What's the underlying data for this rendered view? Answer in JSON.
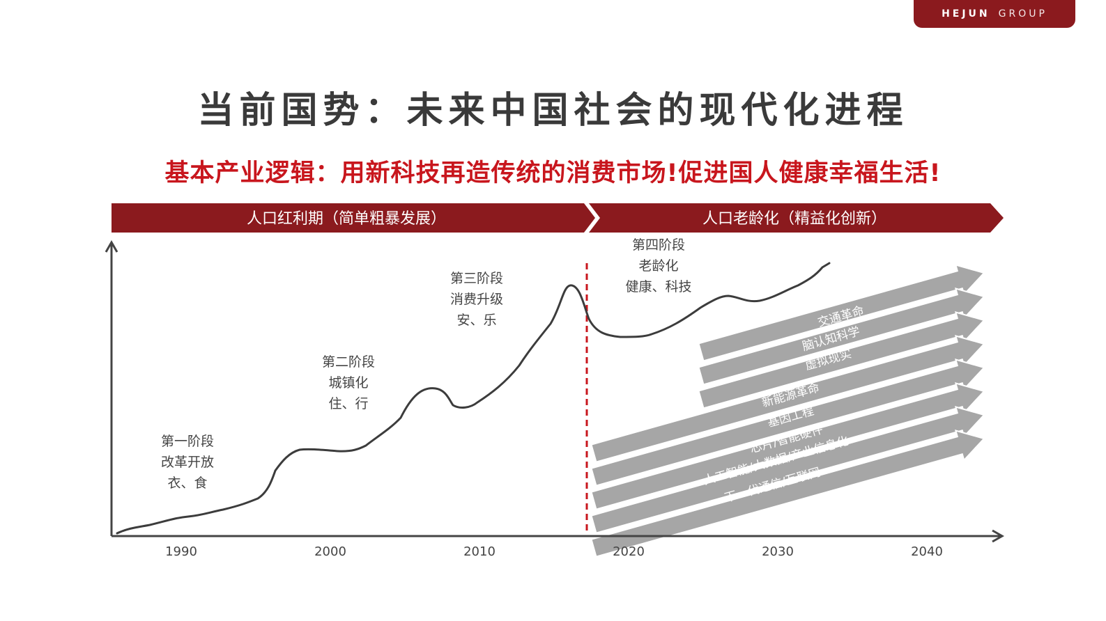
{
  "brand": {
    "bold": "HEJUN",
    "light": "GROUP"
  },
  "title": "当前国势：未来中国社会的现代化进程",
  "subtitle": "基本产业逻辑：用新科技再造传统的消费市场!促进国人健康幸福生活!",
  "banner": {
    "left": "人口红利期（简单粗暴发展）",
    "right": "人口老龄化（精益化创新）"
  },
  "x_axis": {
    "ticks": [
      "1990",
      "2000",
      "2010",
      "2020",
      "2030",
      "2040"
    ]
  },
  "stages": [
    {
      "lines": [
        "第一阶段",
        "改革开放",
        "衣、食"
      ]
    },
    {
      "lines": [
        "第二阶段",
        "城镇化",
        "住、行"
      ]
    },
    {
      "lines": [
        "第三阶段",
        "消费升级",
        "安、乐"
      ]
    },
    {
      "lines": [
        "第四阶段",
        "老龄化",
        "健康、科技"
      ]
    }
  ],
  "tech_arrows": [
    "交通革命",
    "脑认知科学",
    "虚拟现实",
    "新能源革命",
    "基因工程",
    "芯片/智能硬件",
    "人工智能/大数据/产业信息化",
    "下一代通信/互联网"
  ],
  "colors": {
    "brand_red": "#8b1a1e",
    "accent_red": "#c8161d",
    "arrow_gray": "#a6a6a6",
    "text_gray": "#3a3a3a"
  }
}
